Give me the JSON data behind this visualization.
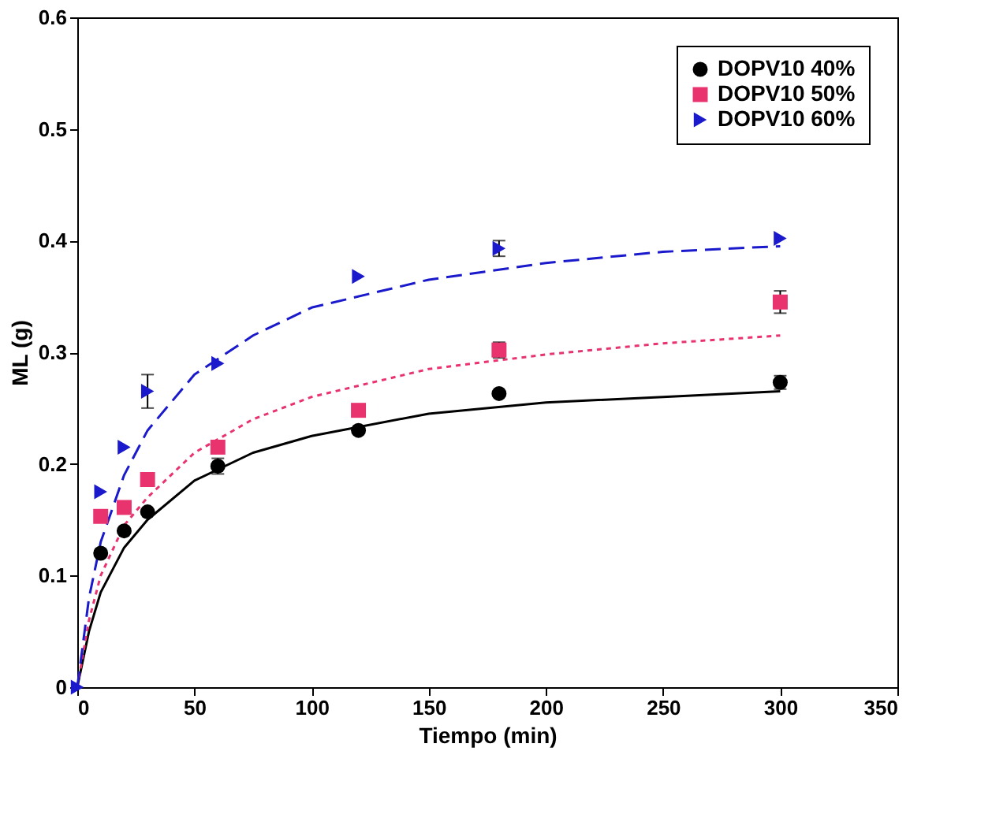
{
  "chart_data": {
    "type": "scatter",
    "xlabel": "Tiempo (min)",
    "ylabel": "ML (g)",
    "xlim": [
      0,
      350
    ],
    "ylim": [
      0,
      0.6
    ],
    "xticks": [
      0,
      50,
      100,
      150,
      200,
      250,
      300,
      350
    ],
    "yticks": [
      0,
      0.1,
      0.2,
      0.3,
      0.4,
      0.5,
      0.6
    ],
    "grid": false,
    "legend": "top right",
    "series": [
      {
        "name": "DOPV10 40%",
        "color": "#000000",
        "marker": "circle",
        "x": [
          10,
          20,
          30,
          60,
          120,
          180,
          300
        ],
        "values": [
          0.12,
          0.14,
          0.157,
          0.198,
          0.23,
          0.263,
          0.273
        ],
        "errors": [
          null,
          null,
          null,
          0.007,
          null,
          null,
          0.006
        ]
      },
      {
        "name": "DOPV10 50%",
        "color": "#e8336f",
        "marker": "square",
        "x": [
          10,
          20,
          30,
          60,
          120,
          180,
          300
        ],
        "values": [
          0.153,
          0.161,
          0.186,
          0.215,
          0.248,
          0.302,
          0.345
        ],
        "errors": [
          null,
          null,
          null,
          null,
          null,
          0.007,
          0.01
        ]
      },
      {
        "name": "DOPV10 60%",
        "color": "#1a1acc",
        "marker": "triangle",
        "x": [
          0,
          10,
          20,
          30,
          60,
          120,
          180,
          300
        ],
        "values": [
          0,
          0.175,
          0.215,
          0.265,
          0.29,
          0.368,
          0.393,
          0.402
        ],
        "errors": [
          null,
          null,
          null,
          0.015,
          null,
          null,
          0.007,
          null
        ]
      },
      {
        "type": "line",
        "color": "#000000",
        "line_style": "solid",
        "x": [
          0,
          5,
          10,
          20,
          30,
          50,
          75,
          100,
          150,
          200,
          250,
          300
        ],
        "values": [
          0,
          0.05,
          0.085,
          0.125,
          0.15,
          0.185,
          0.21,
          0.225,
          0.245,
          0.255,
          0.26,
          0.265
        ]
      },
      {
        "type": "line",
        "color": "#e8336f",
        "line_style": "dotted",
        "x": [
          0,
          5,
          10,
          20,
          30,
          50,
          75,
          100,
          150,
          200,
          250,
          300
        ],
        "values": [
          0,
          0.06,
          0.1,
          0.145,
          0.17,
          0.21,
          0.24,
          0.26,
          0.285,
          0.298,
          0.308,
          0.315
        ]
      },
      {
        "type": "line",
        "color": "#1a1acc",
        "line_style": "dashed",
        "x": [
          0,
          5,
          10,
          20,
          30,
          50,
          75,
          100,
          150,
          200,
          250,
          300
        ],
        "values": [
          0,
          0.08,
          0.13,
          0.19,
          0.23,
          0.28,
          0.315,
          0.34,
          0.365,
          0.38,
          0.39,
          0.395
        ]
      }
    ]
  }
}
